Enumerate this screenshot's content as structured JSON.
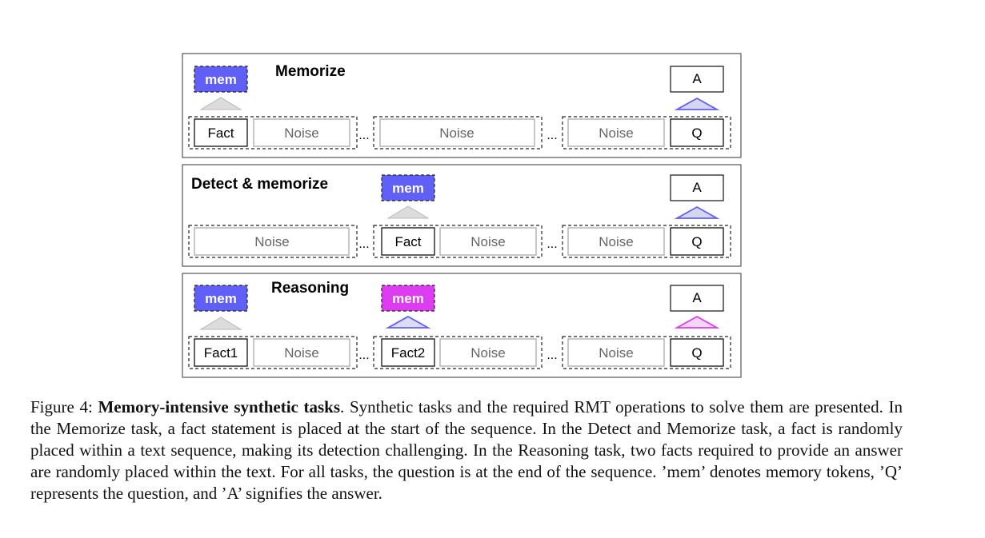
{
  "panels": [
    {
      "title": "Memorize",
      "mem": [
        {
          "label": "mem",
          "color": "#6060f8"
        }
      ],
      "answer": {
        "label": "A",
        "arrow_color": "#6060f8"
      },
      "segments": [
        {
          "tokens": [
            {
              "label": "Fact",
              "kind": "fact"
            },
            {
              "label": "Noise",
              "kind": "noise"
            }
          ]
        },
        {
          "tokens": [
            {
              "label": "Noise",
              "kind": "noise"
            }
          ]
        },
        {
          "tokens": [
            {
              "label": "Noise",
              "kind": "noise"
            },
            {
              "label": "Q",
              "kind": "fact"
            }
          ]
        }
      ]
    },
    {
      "title": "Detect & memorize",
      "mem": [
        {
          "label": "mem",
          "color": "#6060f8"
        }
      ],
      "answer": {
        "label": "A",
        "arrow_color": "#6060f8"
      },
      "segments": [
        {
          "tokens": [
            {
              "label": "Noise",
              "kind": "noise"
            }
          ]
        },
        {
          "tokens": [
            {
              "label": "Fact",
              "kind": "fact"
            },
            {
              "label": "Noise",
              "kind": "noise"
            }
          ]
        },
        {
          "tokens": [
            {
              "label": "Noise",
              "kind": "noise"
            },
            {
              "label": "Q",
              "kind": "fact"
            }
          ]
        }
      ]
    },
    {
      "title": "Reasoning",
      "mem": [
        {
          "label": "mem",
          "color": "#6060f8"
        },
        {
          "label": "mem",
          "color": "#dd3cf0"
        }
      ],
      "answer": {
        "label": "A",
        "arrow_color": "#dd3cf0"
      },
      "segments": [
        {
          "tokens": [
            {
              "label": "Fact1",
              "kind": "fact"
            },
            {
              "label": "Noise",
              "kind": "noise"
            }
          ]
        },
        {
          "tokens": [
            {
              "label": "Fact2",
              "kind": "fact"
            },
            {
              "label": "Noise",
              "kind": "noise"
            }
          ]
        },
        {
          "tokens": [
            {
              "label": "Noise",
              "kind": "noise"
            },
            {
              "label": "Q",
              "kind": "fact"
            }
          ]
        }
      ]
    }
  ],
  "ellipsis": "...",
  "caption": {
    "prefix": "Figure 4: ",
    "bold": "Memory-intensive synthetic tasks",
    "text": ". Synthetic tasks and the required RMT operations to solve them are presented. In the Memorize task, a fact statement is placed at the start of the sequence. In the Detect and Memorize task, a fact is randomly placed within a text sequence, making its detection challenging. In the Reasoning task, two facts required to provide an answer are randomly placed within the text. For all tasks, the question is at the end of the sequence. ’mem’ denotes memory tokens, ’Q’ represents the question, and ’A’ signifies the answer."
  }
}
